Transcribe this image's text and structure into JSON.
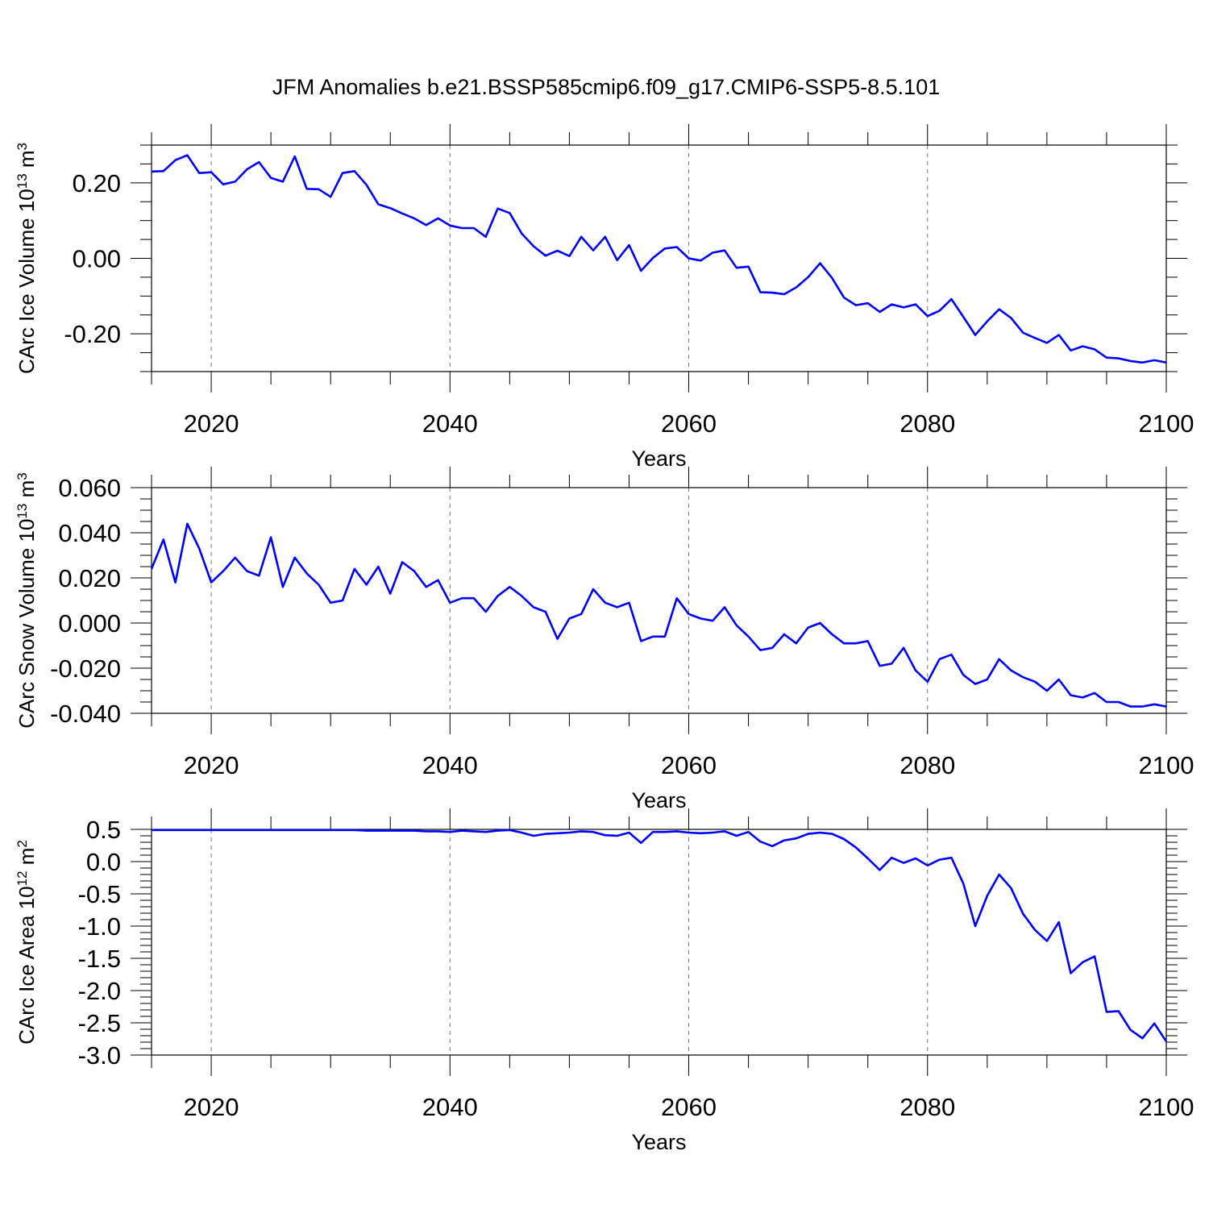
{
  "chart_data": {
    "title": "JFM Anomalies b.e21.BSSP585cmip6.f09_g17.CMIP6-SSP5-8.5.101",
    "panels": [
      {
        "type": "line",
        "name": "ice-volume",
        "xlabel": "Years",
        "ylabel": {
          "base": "CArc Ice Volume 10",
          "exp": "13",
          "unit": " m",
          "unit_exp": "3"
        },
        "xlim": [
          2015,
          2100
        ],
        "ylim": [
          -0.3,
          0.3
        ],
        "yticks": [
          -0.2,
          0.0,
          0.2
        ],
        "ytick_labels": [
          "-0.20",
          "0.00",
          "0.20"
        ],
        "yminor": [
          -0.3,
          -0.25,
          -0.15,
          -0.1,
          -0.05,
          0.05,
          0.1,
          0.15,
          0.25,
          0.3
        ],
        "xticks": [
          2020,
          2040,
          2060,
          2080,
          2100
        ],
        "xtick_labels": [
          "2020",
          "2040",
          "2060",
          "2080",
          "2100"
        ],
        "x": [
          2015,
          2016,
          2017,
          2018,
          2019,
          2020,
          2021,
          2022,
          2023,
          2024,
          2025,
          2026,
          2027,
          2028,
          2029,
          2030,
          2031,
          2032,
          2033,
          2034,
          2035,
          2036,
          2037,
          2038,
          2039,
          2040,
          2041,
          2042,
          2043,
          2044,
          2045,
          2046,
          2047,
          2048,
          2049,
          2050,
          2051,
          2052,
          2053,
          2054,
          2055,
          2056,
          2057,
          2058,
          2059,
          2060,
          2061,
          2062,
          2063,
          2064,
          2065,
          2066,
          2067,
          2068,
          2069,
          2070,
          2071,
          2072,
          2073,
          2074,
          2075,
          2076,
          2077,
          2078,
          2079,
          2080,
          2081,
          2082,
          2083,
          2084,
          2085,
          2086,
          2087,
          2088,
          2089,
          2090,
          2091,
          2092,
          2093,
          2094,
          2095,
          2096,
          2097,
          2098,
          2099,
          2100
        ],
        "values": [
          0.23,
          0.231,
          0.26,
          0.273,
          0.226,
          0.228,
          0.196,
          0.203,
          0.236,
          0.255,
          0.213,
          0.203,
          0.27,
          0.184,
          0.183,
          0.163,
          0.226,
          0.231,
          0.195,
          0.143,
          0.133,
          0.119,
          0.106,
          0.088,
          0.106,
          0.087,
          0.08,
          0.08,
          0.057,
          0.132,
          0.12,
          0.066,
          0.032,
          0.007,
          0.02,
          0.006,
          0.057,
          0.021,
          0.057,
          -0.005,
          0.035,
          -0.033,
          0.001,
          0.026,
          0.03,
          0.0,
          -0.006,
          0.015,
          0.021,
          -0.025,
          -0.022,
          -0.09,
          -0.091,
          -0.095,
          -0.077,
          -0.05,
          -0.013,
          -0.052,
          -0.104,
          -0.124,
          -0.119,
          -0.142,
          -0.122,
          -0.13,
          -0.122,
          -0.153,
          -0.139,
          -0.108,
          -0.155,
          -0.203,
          -0.167,
          -0.135,
          -0.158,
          -0.197,
          -0.211,
          -0.224,
          -0.203,
          -0.244,
          -0.233,
          -0.241,
          -0.263,
          -0.265,
          -0.272,
          -0.276,
          -0.27,
          -0.276
        ]
      },
      {
        "type": "line",
        "name": "snow-volume",
        "xlabel": "Years",
        "ylabel": {
          "base": "CArc Snow Volume 10",
          "exp": "13",
          "unit": " m",
          "unit_exp": "3"
        },
        "xlim": [
          2015,
          2100
        ],
        "ylim": [
          -0.04,
          0.06
        ],
        "yticks": [
          -0.04,
          -0.02,
          0.0,
          0.02,
          0.04,
          0.06
        ],
        "ytick_labels": [
          "-0.040",
          "-0.020",
          "0.000",
          "0.020",
          "0.040",
          "0.060"
        ],
        "yminor": [
          -0.035,
          -0.03,
          -0.025,
          -0.015,
          -0.01,
          -0.005,
          0.005,
          0.01,
          0.015,
          0.025,
          0.03,
          0.035,
          0.045,
          0.05,
          0.055
        ],
        "xticks": [
          2020,
          2040,
          2060,
          2080,
          2100
        ],
        "xtick_labels": [
          "2020",
          "2040",
          "2060",
          "2080",
          "2100"
        ],
        "x": [
          2015,
          2016,
          2017,
          2018,
          2019,
          2020,
          2021,
          2022,
          2023,
          2024,
          2025,
          2026,
          2027,
          2028,
          2029,
          2030,
          2031,
          2032,
          2033,
          2034,
          2035,
          2036,
          2037,
          2038,
          2039,
          2040,
          2041,
          2042,
          2043,
          2044,
          2045,
          2046,
          2047,
          2048,
          2049,
          2050,
          2051,
          2052,
          2053,
          2054,
          2055,
          2056,
          2057,
          2058,
          2059,
          2060,
          2061,
          2062,
          2063,
          2064,
          2065,
          2066,
          2067,
          2068,
          2069,
          2070,
          2071,
          2072,
          2073,
          2074,
          2075,
          2076,
          2077,
          2078,
          2079,
          2080,
          2081,
          2082,
          2083,
          2084,
          2085,
          2086,
          2087,
          2088,
          2089,
          2090,
          2091,
          2092,
          2093,
          2094,
          2095,
          2096,
          2097,
          2098,
          2099,
          2100
        ],
        "values": [
          0.024,
          0.037,
          0.018,
          0.044,
          0.033,
          0.018,
          0.023,
          0.029,
          0.023,
          0.021,
          0.038,
          0.016,
          0.029,
          0.022,
          0.017,
          0.009,
          0.01,
          0.024,
          0.017,
          0.025,
          0.013,
          0.027,
          0.023,
          0.016,
          0.019,
          0.009,
          0.011,
          0.011,
          0.005,
          0.012,
          0.016,
          0.012,
          0.007,
          0.005,
          -0.007,
          0.002,
          0.004,
          0.015,
          0.009,
          0.007,
          0.009,
          -0.008,
          -0.006,
          -0.006,
          0.011,
          0.004,
          0.002,
          0.001,
          0.007,
          -0.001,
          -0.006,
          -0.012,
          -0.011,
          -0.005,
          -0.009,
          -0.002,
          0.0,
          -0.005,
          -0.009,
          -0.009,
          -0.008,
          -0.019,
          -0.018,
          -0.011,
          -0.021,
          -0.026,
          -0.016,
          -0.014,
          -0.023,
          -0.027,
          -0.025,
          -0.016,
          -0.021,
          -0.024,
          -0.026,
          -0.03,
          -0.025,
          -0.032,
          -0.033,
          -0.031,
          -0.035,
          -0.035,
          -0.037,
          -0.037,
          -0.036,
          -0.037
        ]
      },
      {
        "type": "line",
        "name": "ice-area",
        "xlabel": "Years",
        "ylabel": {
          "base": "CArc Ice Area 10",
          "exp": "12",
          "unit": " m",
          "unit_exp": "2"
        },
        "xlim": [
          2015,
          2100
        ],
        "ylim": [
          -3.0,
          0.5
        ],
        "yticks": [
          -3.0,
          -2.5,
          -2.0,
          -1.5,
          -1.0,
          -0.5,
          0.0,
          0.5
        ],
        "ytick_labels": [
          "-3.0",
          "-2.5",
          "-2.0",
          "-1.5",
          "-1.0",
          "-0.5",
          "0.0",
          "0.5"
        ],
        "yminor": [
          -2.9,
          -2.8,
          -2.7,
          -2.6,
          -2.4,
          -2.3,
          -2.2,
          -2.1,
          -1.9,
          -1.8,
          -1.7,
          -1.6,
          -1.4,
          -1.3,
          -1.2,
          -1.1,
          -0.9,
          -0.8,
          -0.7,
          -0.6,
          -0.4,
          -0.3,
          -0.2,
          -0.1,
          0.1,
          0.2,
          0.3,
          0.4
        ],
        "xticks": [
          2020,
          2040,
          2060,
          2080,
          2100
        ],
        "xtick_labels": [
          "2020",
          "2040",
          "2060",
          "2080",
          "2100"
        ],
        "x": [
          2015,
          2016,
          2017,
          2018,
          2019,
          2020,
          2021,
          2022,
          2023,
          2024,
          2025,
          2026,
          2027,
          2028,
          2029,
          2030,
          2031,
          2032,
          2033,
          2034,
          2035,
          2036,
          2037,
          2038,
          2039,
          2040,
          2041,
          2042,
          2043,
          2044,
          2045,
          2046,
          2047,
          2048,
          2049,
          2050,
          2051,
          2052,
          2053,
          2054,
          2055,
          2056,
          2057,
          2058,
          2059,
          2060,
          2061,
          2062,
          2063,
          2064,
          2065,
          2066,
          2067,
          2068,
          2069,
          2070,
          2071,
          2072,
          2073,
          2074,
          2075,
          2076,
          2077,
          2078,
          2079,
          2080,
          2081,
          2082,
          2083,
          2084,
          2085,
          2086,
          2087,
          2088,
          2089,
          2090,
          2091,
          2092,
          2093,
          2094,
          2095,
          2096,
          2097,
          2098,
          2099,
          2100
        ],
        "values": [
          0.49,
          0.49,
          0.49,
          0.49,
          0.49,
          0.49,
          0.49,
          0.49,
          0.49,
          0.49,
          0.49,
          0.49,
          0.49,
          0.49,
          0.49,
          0.49,
          0.49,
          0.49,
          0.48,
          0.48,
          0.48,
          0.48,
          0.48,
          0.47,
          0.47,
          0.46,
          0.48,
          0.47,
          0.46,
          0.48,
          0.49,
          0.45,
          0.4,
          0.43,
          0.44,
          0.45,
          0.47,
          0.46,
          0.41,
          0.4,
          0.45,
          0.29,
          0.46,
          0.46,
          0.47,
          0.45,
          0.44,
          0.45,
          0.47,
          0.4,
          0.46,
          0.31,
          0.24,
          0.33,
          0.36,
          0.43,
          0.45,
          0.43,
          0.35,
          0.22,
          0.05,
          -0.13,
          0.06,
          -0.02,
          0.05,
          -0.06,
          0.03,
          0.06,
          -0.34,
          -1.0,
          -0.53,
          -0.2,
          -0.41,
          -0.81,
          -1.06,
          -1.23,
          -0.94,
          -1.73,
          -1.56,
          -1.47,
          -2.33,
          -2.32,
          -2.61,
          -2.74,
          -2.51,
          -2.79
        ]
      }
    ]
  }
}
